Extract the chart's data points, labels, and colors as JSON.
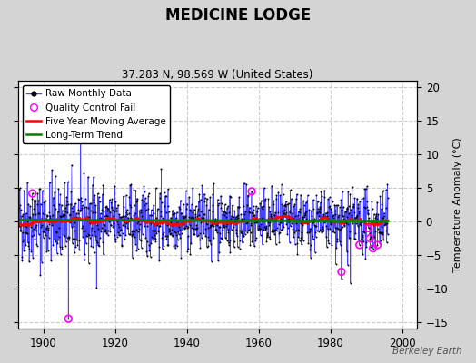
{
  "title": "MEDICINE LODGE",
  "subtitle": "37.283 N, 98.569 W (United States)",
  "ylabel_right": "Temperature Anomaly (°C)",
  "watermark": "Berkeley Earth",
  "xlim": [
    1893,
    2004
  ],
  "ylim": [
    -16,
    21
  ],
  "yticks": [
    -15,
    -10,
    -5,
    0,
    5,
    10,
    15,
    20
  ],
  "xticks": [
    1900,
    1920,
    1940,
    1960,
    1980,
    2000
  ],
  "bg_color": "#d4d4d4",
  "plot_bg_color": "#ffffff",
  "raw_line_color": "#4444ff",
  "raw_dot_color": "black",
  "qc_fail_color": "magenta",
  "moving_avg_color": "red",
  "trend_color": "green",
  "seed": 42,
  "n_months": 1236,
  "start_year": 1893,
  "noise_std": 2.2,
  "qc_fail_indices": [
    48,
    168,
    780,
    1080,
    1140,
    1170,
    1175,
    1185,
    1200
  ],
  "qc_fail_values": [
    4.2,
    -14.5,
    4.5,
    -7.5,
    -3.5,
    -1.0,
    -2.5,
    -4.0,
    -3.5
  ]
}
